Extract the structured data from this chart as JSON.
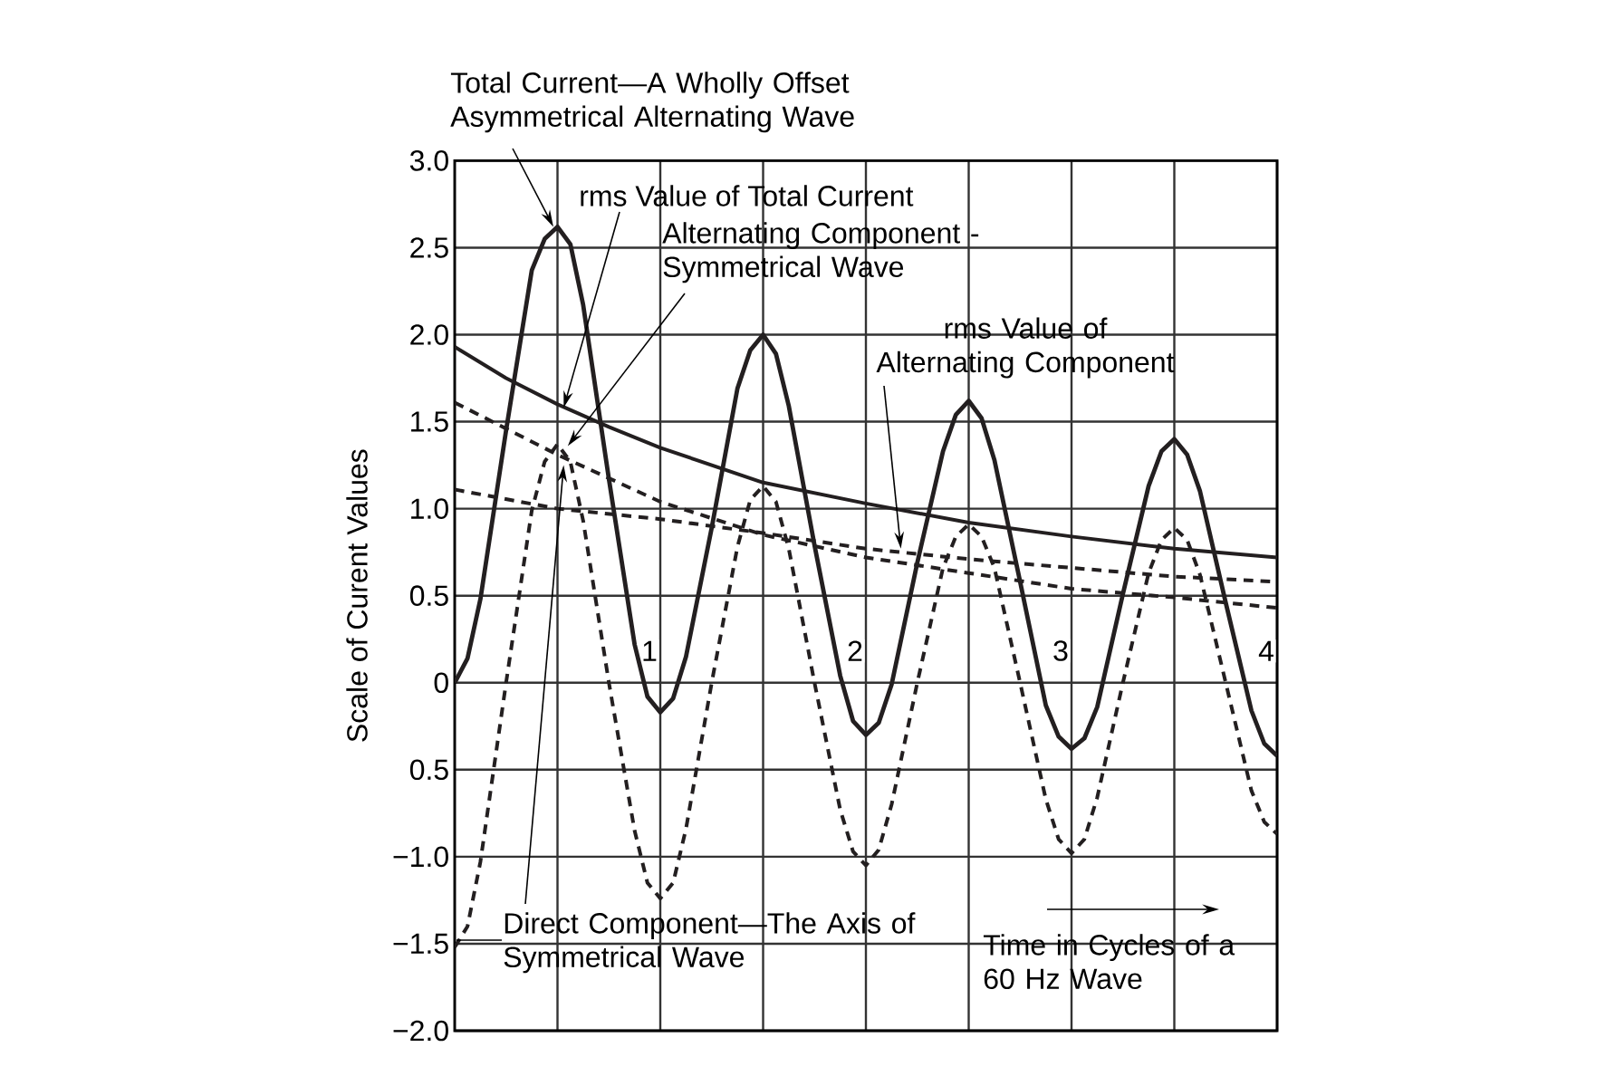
{
  "chart_data": {
    "type": "line",
    "xlabel": "Time in Cycles of a 60 Hz Wave",
    "ylabel": "Scale of Curent Values",
    "xlim": [
      0,
      4
    ],
    "ylim": [
      -2,
      3
    ],
    "xticks": [
      {
        "value": 0.5,
        "label": null
      },
      1,
      {
        "value": 1.5,
        "label": null
      },
      2,
      {
        "value": 2.5,
        "label": null
      },
      3,
      {
        "value": 3.5,
        "label": null
      },
      4
    ],
    "yticks": [
      {
        "value": -2,
        "label": "−2.0"
      },
      {
        "value": -1.5,
        "label": "−1.5"
      },
      {
        "value": -1,
        "label": "−1.0"
      },
      {
        "value": -0.5,
        "label": "0.5"
      },
      {
        "value": 0,
        "label": "0"
      },
      {
        "value": 0.5,
        "label": "0.5"
      },
      {
        "value": 1,
        "label": "1.0"
      },
      {
        "value": 1.5,
        "label": "1.5"
      },
      {
        "value": 2,
        "label": "2.0"
      },
      {
        "value": 2.5,
        "label": "2.5"
      },
      {
        "value": 3,
        "label": "3.0"
      }
    ],
    "grid": true,
    "series": [
      {
        "color": "#231f20",
        "line_style": "solid",
        "x": [
          0,
          0.0625,
          0.125,
          0.25,
          0.375,
          0.4375,
          0.5,
          0.5625,
          0.625,
          0.75,
          0.875,
          0.9375,
          1,
          1.0625,
          1.125,
          1.25,
          1.375,
          1.4375,
          1.5,
          1.5625,
          1.625,
          1.75,
          1.875,
          1.9375,
          2,
          2.0625,
          2.125,
          2.25,
          2.375,
          2.4375,
          2.5,
          2.5625,
          2.625,
          2.75,
          2.875,
          2.9375,
          3,
          3.0625,
          3.125,
          3.25,
          3.375,
          3.4375,
          3.5,
          3.5625,
          3.625,
          3.75,
          3.875,
          3.9375,
          4
        ],
        "values": [
          0,
          0.14,
          0.48,
          1.45,
          2.37,
          2.55,
          2.62,
          2.52,
          2.17,
          1.17,
          0.22,
          -0.08,
          -0.17,
          -0.09,
          0.15,
          0.89,
          1.69,
          1.91,
          2.0,
          1.89,
          1.59,
          0.79,
          0.04,
          -0.22,
          -0.3,
          -0.23,
          -0.01,
          0.69,
          1.33,
          1.54,
          1.62,
          1.52,
          1.28,
          0.58,
          -0.13,
          -0.31,
          -0.38,
          -0.32,
          -0.14,
          0.51,
          1.13,
          1.33,
          1.4,
          1.31,
          1.1,
          0.46,
          -0.16,
          -0.35,
          -0.42
        ]
      },
      {
        "color": "#231f20",
        "line_style": "dashed",
        "x": [
          0,
          0.0625,
          0.125,
          0.25,
          0.375,
          0.4375,
          0.5,
          0.5625,
          0.625,
          0.75,
          0.875,
          0.9375,
          1,
          1.0625,
          1.125,
          1.25,
          1.375,
          1.4375,
          1.5,
          1.5625,
          1.625,
          1.75,
          1.875,
          1.9375,
          2,
          2.0625,
          2.125,
          2.25,
          2.375,
          2.4375,
          2.5,
          2.5625,
          2.625,
          2.75,
          2.875,
          2.9375,
          3,
          3.0625,
          3.125,
          3.25,
          3.375,
          3.4375,
          3.5,
          3.5625,
          3.625,
          3.75,
          3.875,
          3.9375,
          4
        ],
        "values": [
          -1.52,
          -1.4,
          -1.03,
          0,
          0.99,
          1.27,
          1.37,
          1.27,
          0.93,
          0,
          -0.85,
          -1.15,
          -1.24,
          -1.15,
          -0.84,
          0,
          0.78,
          1.05,
          1.13,
          1.04,
          0.77,
          0,
          -0.73,
          -0.97,
          -1.05,
          -0.96,
          -0.7,
          0,
          0.66,
          0.84,
          0.91,
          0.84,
          0.66,
          0,
          -0.67,
          -0.9,
          -0.98,
          -0.9,
          -0.66,
          0,
          0.63,
          0.82,
          0.89,
          0.82,
          0.62,
          0,
          -0.62,
          -0.8,
          -0.87
        ]
      },
      {
        "color": "#231f20",
        "line_style": "solid",
        "x": [
          0,
          0.25,
          0.5,
          0.75,
          1,
          1.5,
          2,
          2.5,
          3,
          3.5,
          4
        ],
        "values": [
          1.93,
          1.75,
          1.6,
          1.47,
          1.35,
          1.15,
          1.03,
          0.92,
          0.84,
          0.77,
          0.72
        ]
      },
      {
        "color": "#231f20",
        "line_style": "dashed",
        "x": [
          0,
          0.5,
          1,
          1.5,
          2,
          2.5,
          3,
          3.5,
          4
        ],
        "values": [
          1.61,
          1.31,
          1.04,
          0.85,
          0.72,
          0.63,
          0.54,
          0.49,
          0.43
        ]
      },
      {
        "color": "#231f20",
        "line_style": "dashed",
        "x": [
          0,
          0.5,
          1,
          1.5,
          2,
          2.5,
          3,
          3.5,
          4
        ],
        "values": [
          1.11,
          1.0,
          0.94,
          0.86,
          0.77,
          0.71,
          0.66,
          0.61,
          0.58
        ]
      }
    ],
    "annotations": [
      {
        "text": "Total Current—A Wholly Offset Asymmetrical Alternating Wave",
        "x": 0.48,
        "y": 2.62
      },
      {
        "text": "rms Value of Total Current",
        "x": 0.53,
        "y": 1.58
      },
      {
        "text": "Alternating Component - Symmetrical Wave",
        "x": 0.55,
        "y": 1.36
      },
      {
        "text": "rms Value of Alternating Component",
        "x": 2.17,
        "y": 0.77
      },
      {
        "text": "Direct Component—The Axis of Symmetrical Wave",
        "x": 0.53,
        "y": 1.25
      }
    ]
  }
}
